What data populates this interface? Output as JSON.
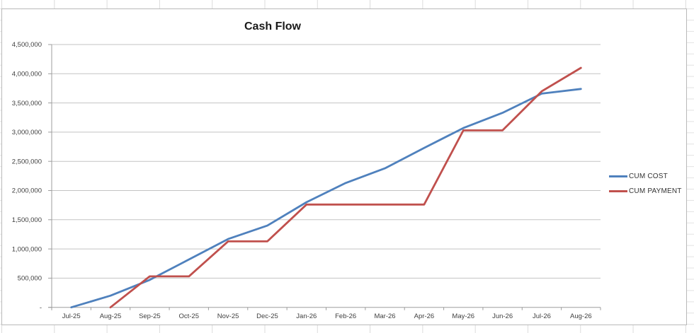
{
  "chart_data": {
    "type": "line",
    "title": "Cash Flow",
    "categories": [
      "Jul-25",
      "Aug-25",
      "Sep-25",
      "Oct-25",
      "Nov-25",
      "Dec-25",
      "Jan-26",
      "Feb-26",
      "Mar-26",
      "Apr-26",
      "May-26",
      "Jun-26",
      "Jul-26",
      "Aug-26"
    ],
    "series": [
      {
        "name": "CUM COST",
        "color": "#4F81BD",
        "values": [
          0,
          200000,
          470000,
          820000,
          1170000,
          1400000,
          1800000,
          2130000,
          2380000,
          2730000,
          3070000,
          3330000,
          3660000,
          3740000
        ]
      },
      {
        "name": "CUM PAYMENT",
        "color": "#C0504D",
        "values": [
          null,
          0,
          530000,
          530000,
          1130000,
          1130000,
          1760000,
          1760000,
          1760000,
          1760000,
          3030000,
          3030000,
          3700000,
          4100000
        ]
      }
    ],
    "xlabel": "",
    "ylabel": "",
    "y_axis": {
      "min": 0,
      "max": 4500000,
      "step": 500000,
      "tick_labels": [
        "-",
        "500,000",
        "1,000,000",
        "1,500,000",
        "2,000,000",
        "2,500,000",
        "3,000,000",
        "3,500,000",
        "4,000,000",
        "4,500,000"
      ]
    },
    "legend_position": "right",
    "grid": true,
    "colors": {
      "gridline": "#c3c3c3",
      "axis": "#9d9d9d",
      "title_text": "#1a1a1a",
      "axis_text": "#3f3f3f"
    }
  }
}
